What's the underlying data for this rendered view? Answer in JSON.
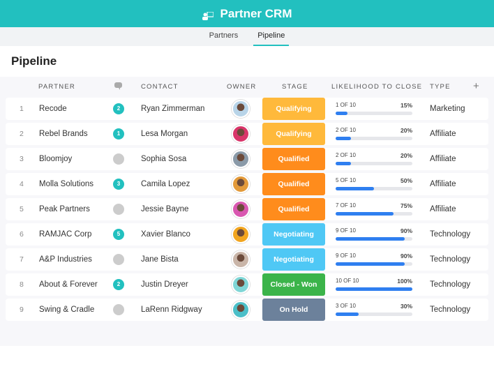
{
  "app": {
    "title": "Partner CRM"
  },
  "tabs": [
    {
      "label": "Partners"
    },
    {
      "label": "Pipeline",
      "active": true
    }
  ],
  "page_title": "Pipeline",
  "columns": {
    "partner": "PARTNER",
    "contact": "CONTACT",
    "owner": "OWNER",
    "stage": "STAGE",
    "likelihood": "LIKELIHOOD TO CLOSE",
    "type": "TYPE",
    "add": "+"
  },
  "stage_colors": {
    "Qualifying": "#ffb93b",
    "Qualified": "#ff8c1c",
    "Negotiating": "#4fc8f5",
    "Closed - Won": "#3bb44a",
    "On Hold": "#6c819b"
  },
  "rows": [
    {
      "num": "1",
      "partner": "Recode",
      "comments": "2",
      "contact": "Ryan Zimmerman",
      "stage": "Qualifying",
      "score": "1 OF 10",
      "pct": "15%",
      "type": "Marketing",
      "avatar": "#b8d4e8"
    },
    {
      "num": "2",
      "partner": "Rebel Brands",
      "comments": "1",
      "contact": "Lesa Morgan",
      "stage": "Qualifying",
      "score": "2 OF 10",
      "pct": "20%",
      "type": "Affiliate",
      "avatar": "#d9356a"
    },
    {
      "num": "3",
      "partner": "Bloomjoy",
      "comments": "",
      "contact": "Sophia Sosa",
      "stage": "Qualified",
      "score": "2 OF 10",
      "pct": "20%",
      "type": "Affiliate",
      "avatar": "#8a9aa8"
    },
    {
      "num": "4",
      "partner": "Molla Solutions",
      "comments": "3",
      "contact": "Camila Lopez",
      "stage": "Qualified",
      "score": "5 OF 10",
      "pct": "50%",
      "type": "Affiliate",
      "avatar": "#e39a3a"
    },
    {
      "num": "5",
      "partner": "Peak Partners",
      "comments": "",
      "contact": "Jessie Bayne",
      "stage": "Qualified",
      "score": "7 OF 10",
      "pct": "75%",
      "type": "Affiliate",
      "avatar": "#d957b0"
    },
    {
      "num": "6",
      "partner": "RAMJAC Corp",
      "comments": "5",
      "contact": "Xavier Blanco",
      "stage": "Negotiating",
      "score": "9 OF 10",
      "pct": "90%",
      "type": "Technology",
      "avatar": "#f2a51f"
    },
    {
      "num": "7",
      "partner": "A&P Industries",
      "comments": "",
      "contact": "Jane Bista",
      "stage": "Negotiating",
      "score": "9 OF 10",
      "pct": "90%",
      "type": "Technology",
      "avatar": "#c9b5a8"
    },
    {
      "num": "8",
      "partner": "About & Forever",
      "comments": "2",
      "contact": "Justin Dreyer",
      "stage": "Closed - Won",
      "score": "10 OF 10",
      "pct": "100%",
      "type": "Technology",
      "avatar": "#7fd6d6"
    },
    {
      "num": "9",
      "partner": "Swing & Cradle",
      "comments": "",
      "contact": "LaRenn Ridgway",
      "stage": "On Hold",
      "score": "3 OF 10",
      "pct": "30%",
      "type": "Technology",
      "avatar": "#4bbfc8"
    }
  ]
}
